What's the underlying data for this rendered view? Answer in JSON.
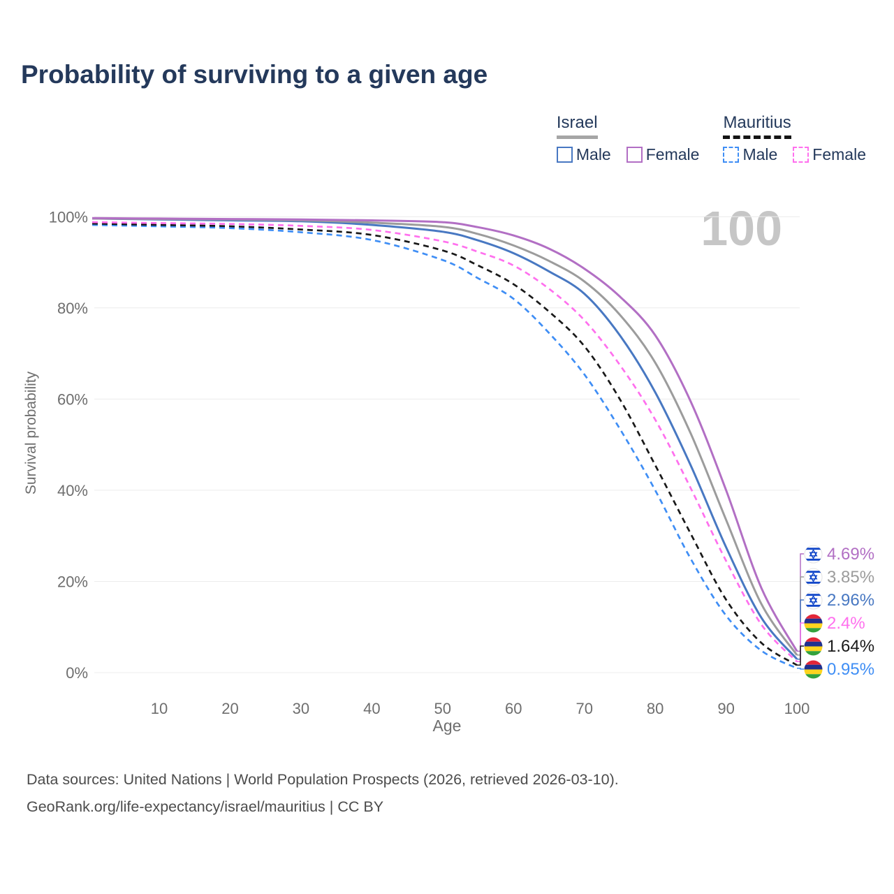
{
  "title": "Probability of surviving to a given age",
  "legend": {
    "groups": [
      {
        "label": "Israel",
        "line_style": "solid",
        "items": [
          {
            "label": "Male",
            "color": "#4878c2"
          },
          {
            "label": "Female",
            "color": "#b26fc4"
          }
        ]
      },
      {
        "label": "Mauritius",
        "line_style": "dashed",
        "items": [
          {
            "label": "Male",
            "color": "#3f8ef5"
          },
          {
            "label": "Female",
            "color": "#ff70ee"
          }
        ]
      }
    ]
  },
  "watermark": "100",
  "footer": {
    "line1": "Data sources: United Nations | World Population Prospects (2026, retrieved 2026-03-10).",
    "line2": "GeoRank.org/life-expectancy/israel/mauritius | CC BY"
  },
  "chart_data": {
    "type": "line",
    "title": "Probability of surviving to a given age",
    "xlabel": "Age",
    "ylabel": "Survival probability",
    "xlim": [
      0,
      100
    ],
    "ylim": [
      0,
      100
    ],
    "grid": "horizontal",
    "legend_position": "top-right",
    "x_ticks": [
      10,
      20,
      30,
      40,
      50,
      60,
      70,
      80,
      90,
      100
    ],
    "y_ticks": [
      0,
      20,
      40,
      60,
      80,
      100
    ],
    "y_tick_suffix": "%",
    "hover_age_indicator": "100",
    "ages": [
      0,
      10,
      20,
      30,
      40,
      50,
      55,
      60,
      65,
      70,
      75,
      80,
      85,
      90,
      95,
      100
    ],
    "series": [
      {
        "id": "israel-female",
        "name": "Israel Female",
        "country": "Israel",
        "sex": "Female",
        "color": "#b26fc4",
        "dash": "solid",
        "flag": "israel",
        "end_label": "4.69%",
        "values": [
          99.7,
          99.6,
          99.5,
          99.4,
          99.2,
          98.8,
          97.7,
          95.9,
          93.0,
          88.6,
          82.5,
          74.0,
          59.5,
          40.0,
          18.5,
          4.69
        ]
      },
      {
        "id": "israel-both",
        "name": "Israel Both sexes",
        "country": "Israel",
        "sex": "Both",
        "color": "#9c9c9c",
        "dash": "solid",
        "flag": "israel",
        "end_label": "3.85%",
        "values": [
          99.6,
          99.5,
          99.4,
          99.2,
          98.7,
          97.8,
          96.2,
          93.7,
          90.3,
          85.8,
          78.5,
          68.0,
          52.5,
          33.5,
          15.0,
          3.85
        ]
      },
      {
        "id": "israel-male",
        "name": "Israel Male",
        "country": "Israel",
        "sex": "Male",
        "color": "#4878c2",
        "dash": "solid",
        "flag": "israel",
        "end_label": "2.96%",
        "values": [
          99.6,
          99.4,
          99.2,
          99.0,
          98.2,
          96.7,
          94.8,
          92.0,
          88.0,
          83.1,
          74.0,
          61.5,
          45.5,
          27.5,
          12.0,
          2.96
        ]
      },
      {
        "id": "mauritius-female",
        "name": "Mauritius Female",
        "country": "Mauritius",
        "sex": "Female",
        "color": "#ff70ee",
        "dash": "dashed",
        "flag": "mauritius",
        "end_label": "2.4%",
        "values": [
          98.8,
          98.6,
          98.4,
          98.0,
          97.1,
          94.6,
          92.3,
          89.3,
          84.2,
          77.3,
          67.5,
          55.5,
          40.5,
          24.5,
          10.5,
          2.4
        ]
      },
      {
        "id": "mauritius-both",
        "name": "Mauritius Both sexes",
        "country": "Mauritius",
        "sex": "Both",
        "color": "#191919",
        "dash": "dashed",
        "flag": "mauritius",
        "end_label": "1.64%",
        "values": [
          98.5,
          98.2,
          97.9,
          97.2,
          96.0,
          92.6,
          89.3,
          85.2,
          79.2,
          71.6,
          60.0,
          45.5,
          30.5,
          16.0,
          6.5,
          1.64
        ]
      },
      {
        "id": "mauritius-male",
        "name": "Mauritius Male",
        "country": "Mauritius",
        "sex": "Male",
        "color": "#3f8ef5",
        "dash": "dashed",
        "flag": "mauritius",
        "end_label": "0.95%",
        "values": [
          98.2,
          97.9,
          97.5,
          96.6,
          94.9,
          90.5,
          86.5,
          82.0,
          74.5,
          65.4,
          53.5,
          40.0,
          25.0,
          12.5,
          4.8,
          0.95
        ]
      }
    ]
  }
}
